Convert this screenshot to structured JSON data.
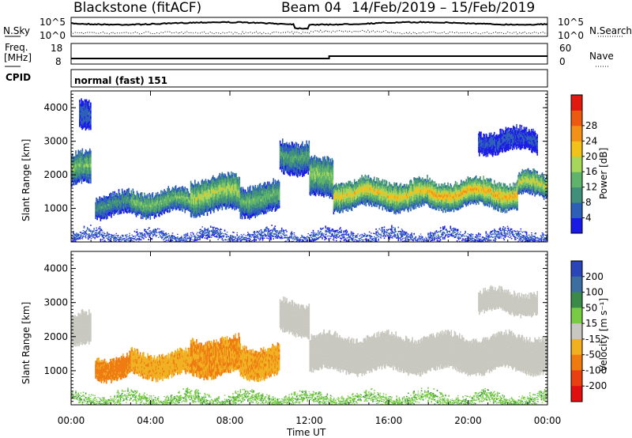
{
  "header": {
    "site": "Blackstone (fitACF)",
    "beam": "Beam 04",
    "date_range": "14/Feb/2019 – 15/Feb/2019"
  },
  "top_panels": {
    "noise": {
      "left_label": "N.Sky",
      "right_label": "N.Search",
      "left_ticks": [
        "10^5",
        "10^0"
      ],
      "right_ticks": [
        "10^5",
        "10^0"
      ]
    },
    "freq": {
      "left_label_1": "Freq.",
      "left_label_2": "[MHz]",
      "right_label": "Nave",
      "left_ticks": [
        "18",
        "8"
      ],
      "right_ticks": [
        "60",
        "0"
      ]
    },
    "cpid": {
      "label": "CPID",
      "value": "normal (fast) 151"
    }
  },
  "chart_data": [
    {
      "type": "heatmap",
      "name": "power",
      "ylabel": "Slant Range [km]",
      "xlabel": "Time UT",
      "ylim": [
        0,
        4500
      ],
      "x_ticks": [
        "00:00",
        "04:00",
        "08:00",
        "12:00",
        "16:00",
        "20:00",
        "00:00"
      ],
      "y_ticks": [
        "1000",
        "2000",
        "3000",
        "4000"
      ],
      "colorbar": {
        "label": "Power [dB]",
        "ticks": [
          "4",
          "8",
          "12",
          "16",
          "20",
          "24",
          "28"
        ]
      },
      "bands": [
        {
          "t0": 0.0,
          "t1": 1.0,
          "lo": 1700,
          "hi": 2600,
          "level": 14
        },
        {
          "t0": 0.4,
          "t1": 1.0,
          "lo": 3300,
          "hi": 4100,
          "level": 6
        },
        {
          "t0": 1.2,
          "t1": 3.0,
          "lo": 800,
          "hi": 1400,
          "level": 10
        },
        {
          "t0": 3.0,
          "t1": 6.0,
          "lo": 850,
          "hi": 1500,
          "level": 14
        },
        {
          "t0": 6.0,
          "t1": 8.5,
          "lo": 900,
          "hi": 1900,
          "level": 17
        },
        {
          "t0": 8.5,
          "t1": 10.5,
          "lo": 850,
          "hi": 1700,
          "level": 13
        },
        {
          "t0": 10.5,
          "t1": 12.0,
          "lo": 2100,
          "hi": 3000,
          "level": 11
        },
        {
          "t0": 12.0,
          "t1": 13.2,
          "lo": 1300,
          "hi": 2400,
          "level": 15
        },
        {
          "t0": 13.2,
          "t1": 18.0,
          "lo": 1000,
          "hi": 1800,
          "level": 20
        },
        {
          "t0": 18.0,
          "t1": 22.5,
          "lo": 1050,
          "hi": 1800,
          "level": 22
        },
        {
          "t0": 22.5,
          "t1": 24.0,
          "lo": 1350,
          "hi": 2000,
          "level": 18
        },
        {
          "t0": 20.5,
          "t1": 23.5,
          "lo": 2700,
          "hi": 3300,
          "level": 5
        },
        {
          "t0": 0.0,
          "t1": 24.0,
          "lo": 0,
          "hi": 300,
          "level": 6
        }
      ]
    },
    {
      "type": "heatmap",
      "name": "velocity",
      "ylabel": "Slant Range [km]",
      "xlabel": "Time UT",
      "ylim": [
        0,
        4500
      ],
      "x_ticks": [
        "00:00",
        "04:00",
        "08:00",
        "12:00",
        "16:00",
        "20:00",
        "00:00"
      ],
      "y_ticks": [
        "1000",
        "2000",
        "3000",
        "4000"
      ],
      "colorbar": {
        "label": "Velocity [m s⁻¹]",
        "ticks": [
          "200",
          "100",
          "50",
          "15",
          "-15",
          "-50",
          "-100",
          "-200"
        ]
      },
      "bands": [
        {
          "t0": 0.0,
          "t1": 1.0,
          "lo": 1700,
          "hi": 2600,
          "level": 0
        },
        {
          "t0": 1.2,
          "t1": 3.0,
          "lo": 800,
          "hi": 1400,
          "level": -60
        },
        {
          "t0": 3.0,
          "t1": 6.0,
          "lo": 850,
          "hi": 1500,
          "level": -40
        },
        {
          "t0": 6.0,
          "t1": 8.5,
          "lo": 900,
          "hi": 1900,
          "level": -50
        },
        {
          "t0": 8.5,
          "t1": 10.5,
          "lo": 850,
          "hi": 1700,
          "level": -45
        },
        {
          "t0": 10.5,
          "t1": 12.0,
          "lo": 2100,
          "hi": 3000,
          "level": 0
        },
        {
          "t0": 12.0,
          "t1": 24.0,
          "lo": 1000,
          "hi": 2000,
          "level": 0
        },
        {
          "t0": 20.5,
          "t1": 23.5,
          "lo": 2700,
          "hi": 3300,
          "level": 0
        },
        {
          "t0": 0.0,
          "t1": 24.0,
          "lo": 0,
          "hi": 300,
          "level": 40
        }
      ]
    }
  ],
  "colors": {
    "power_scale": [
      "#1a1ae6",
      "#2c5fb8",
      "#3f8f7a",
      "#5fb36a",
      "#a6d65a",
      "#f2c21a",
      "#f29118",
      "#ec5a12",
      "#e11a0f"
    ],
    "velocity_scale": [
      "#2a45b8",
      "#3d6ea0",
      "#3a8a4a",
      "#77cc44",
      "#c8c8c0",
      "#f0b020",
      "#ee7a10",
      "#e84010",
      "#e01010"
    ]
  }
}
